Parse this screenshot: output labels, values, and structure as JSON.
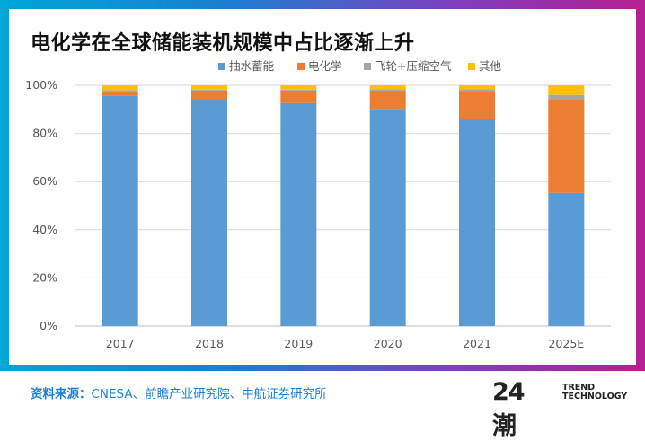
{
  "chart_data": {
    "type": "bar",
    "stacked": true,
    "title": "电化学在全球储能装机规模中占比逐渐上升",
    "categories": [
      "2017",
      "2018",
      "2019",
      "2020",
      "2021",
      "2025E"
    ],
    "series": [
      {
        "name": "抽水蓄能",
        "color": "#5b9bd5",
        "values": [
          95.8,
          94.2,
          92.6,
          90.2,
          86.0,
          55.3
        ]
      },
      {
        "name": "电化学",
        "color": "#ed7d31",
        "values": [
          1.7,
          3.6,
          5.2,
          7.6,
          11.7,
          39.0
        ]
      },
      {
        "name": "飞轮+压缩空气",
        "color": "#a5a5a5",
        "values": [
          0.5,
          0.4,
          0.4,
          0.5,
          0.6,
          1.7
        ]
      },
      {
        "name": "其他",
        "color": "#ffc000",
        "values": [
          2.0,
          1.8,
          1.8,
          1.7,
          1.7,
          4.0
        ]
      }
    ],
    "yticks": [
      "0%",
      "20%",
      "40%",
      "60%",
      "80%",
      "100%"
    ],
    "ylim": [
      0,
      100
    ],
    "grid": true,
    "legend": "top-center"
  },
  "footer": {
    "source_label": "资料来源：",
    "source_text": "CNESA、前瞻产业研究院、中航证券研究所",
    "logo_mark": "24潮",
    "logo_line1": "TREND",
    "logo_line2": "TECHNOLOGY"
  }
}
